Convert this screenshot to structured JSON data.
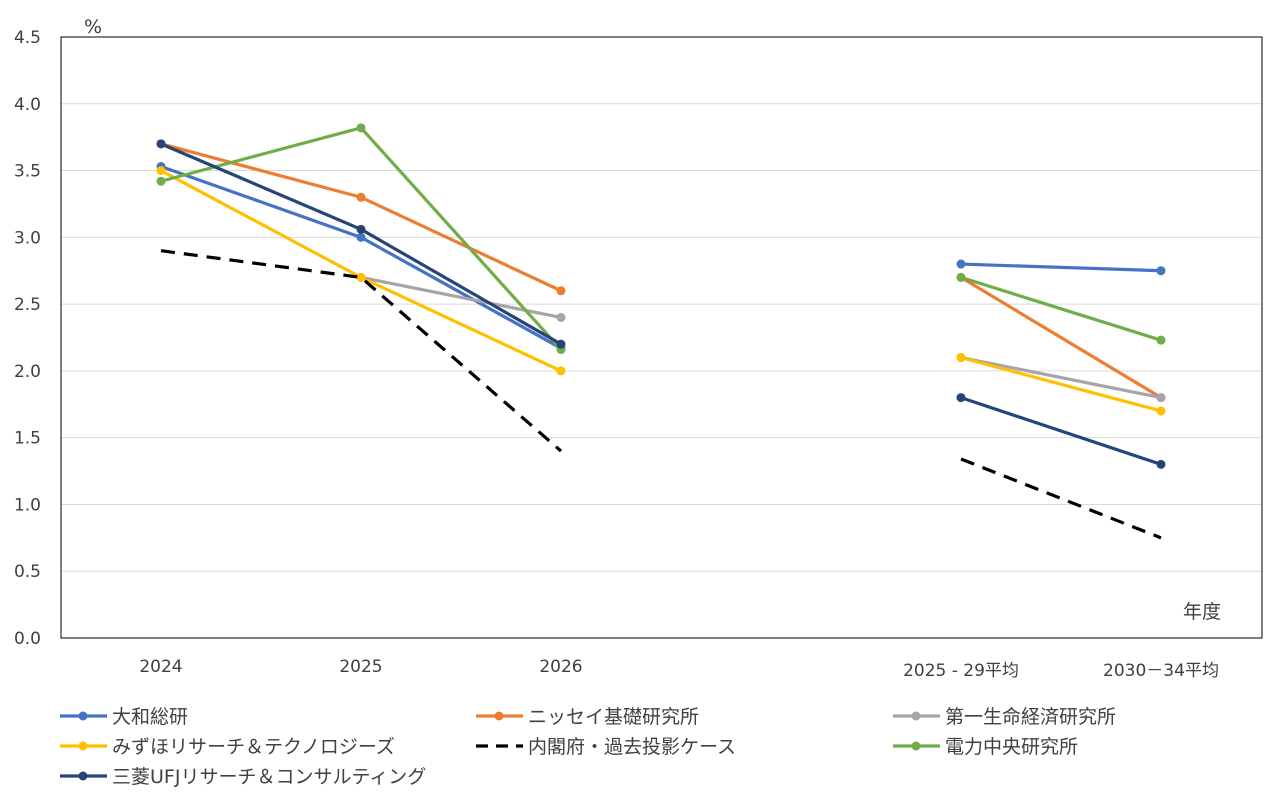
{
  "chart_data": {
    "type": "line",
    "ylabel": "%",
    "xlabel": "年度",
    "ylim": [
      0,
      4.5
    ],
    "yticks": [
      "0.0",
      "0.5",
      "1.0",
      "1.5",
      "2.0",
      "2.5",
      "3.0",
      "3.5",
      "4.0",
      "4.5"
    ],
    "categories": [
      "2024",
      "2025",
      "2026",
      "",
      "2025 - 29平均",
      "2030－34平均"
    ],
    "grid": true,
    "legend_position": "bottom",
    "series": [
      {
        "name": "大和総研",
        "color": "#4472C4",
        "dashed": false,
        "values": [
          3.53,
          3.0,
          2.17,
          null,
          2.8,
          2.75
        ]
      },
      {
        "name": "ニッセイ基礎研究所",
        "color": "#ED7D31",
        "dashed": false,
        "values": [
          3.7,
          3.3,
          2.6,
          null,
          2.7,
          1.8
        ]
      },
      {
        "name": "第一生命経済研究所",
        "color": "#A5A5A5",
        "dashed": false,
        "values": [
          null,
          2.7,
          2.4,
          null,
          2.1,
          1.8
        ]
      },
      {
        "name": "みずほリサーチ＆テクノロジーズ",
        "color": "#FFC000",
        "dashed": false,
        "values": [
          3.5,
          2.7,
          2.0,
          null,
          2.1,
          1.7
        ]
      },
      {
        "name": "内閣府・過去投影ケース",
        "color": "#000000",
        "dashed": true,
        "values": [
          2.9,
          2.7,
          1.4,
          null,
          1.34,
          0.75
        ]
      },
      {
        "name": "電力中央研究所",
        "color": "#70AD47",
        "dashed": false,
        "values": [
          3.42,
          3.82,
          2.16,
          null,
          2.7,
          2.23
        ]
      },
      {
        "name": "三菱UFJリサーチ＆コンサルティング",
        "color": "#264478",
        "dashed": false,
        "values": [
          3.7,
          3.06,
          2.2,
          null,
          1.8,
          1.3
        ]
      }
    ]
  }
}
